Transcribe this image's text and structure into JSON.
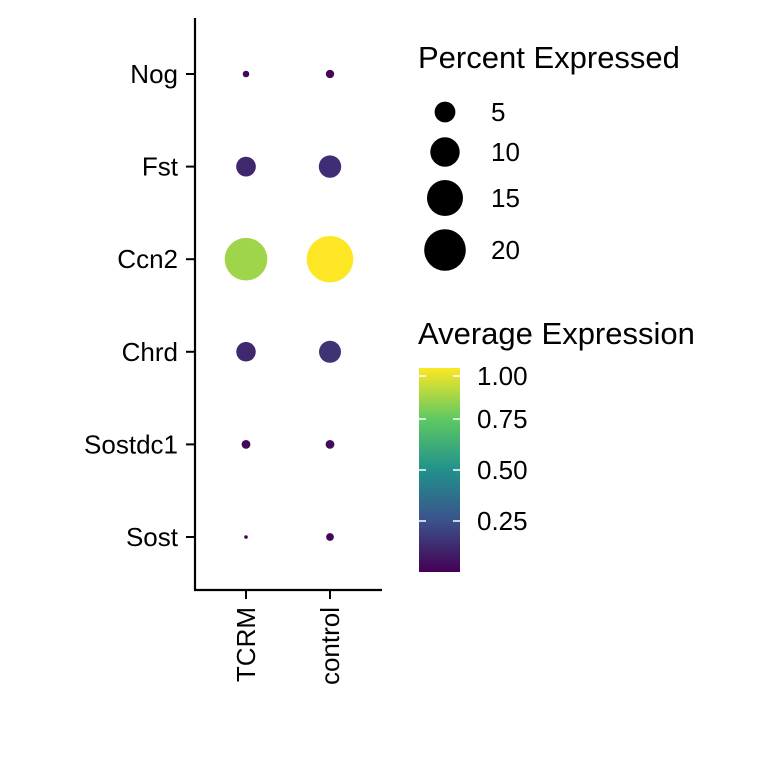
{
  "chart_data": {
    "type": "scatter",
    "subtype": "dot-plot",
    "x_categories": [
      "TCRM",
      "control"
    ],
    "y_categories": [
      "Nog",
      "Fst",
      "Ccn2",
      "Chrd",
      "Sostdc1",
      "Sost"
    ],
    "points": [
      {
        "x": "TCRM",
        "y": "Nog",
        "percent_expressed": 0.5,
        "average_expression": 0.02
      },
      {
        "x": "control",
        "y": "Nog",
        "percent_expressed": 0.8,
        "average_expression": 0.02
      },
      {
        "x": "TCRM",
        "y": "Fst",
        "percent_expressed": 4.5,
        "average_expression": 0.12
      },
      {
        "x": "control",
        "y": "Fst",
        "percent_expressed": 5.8,
        "average_expression": 0.14
      },
      {
        "x": "TCRM",
        "y": "Ccn2",
        "percent_expressed": 21.0,
        "average_expression": 0.85
      },
      {
        "x": "control",
        "y": "Ccn2",
        "percent_expressed": 25.0,
        "average_expression": 1.0
      },
      {
        "x": "TCRM",
        "y": "Chrd",
        "percent_expressed": 4.4,
        "average_expression": 0.12
      },
      {
        "x": "control",
        "y": "Chrd",
        "percent_expressed": 5.6,
        "average_expression": 0.15
      },
      {
        "x": "TCRM",
        "y": "Sostdc1",
        "percent_expressed": 0.9,
        "average_expression": 0.02
      },
      {
        "x": "control",
        "y": "Sostdc1",
        "percent_expressed": 0.9,
        "average_expression": 0.03
      },
      {
        "x": "TCRM",
        "y": "Sost",
        "percent_expressed": 0.15,
        "average_expression": 0.0
      },
      {
        "x": "control",
        "y": "Sost",
        "percent_expressed": 0.7,
        "average_expression": 0.02
      }
    ],
    "size_legend": {
      "title": "Percent Expressed",
      "breaks": [
        5,
        10,
        15,
        20
      ],
      "labels": [
        "5",
        "10",
        "15",
        "20"
      ]
    },
    "color_legend": {
      "title": "Average Expression",
      "palette": "viridis",
      "range": [
        0,
        1.0
      ],
      "breaks": [
        1.0,
        0.75,
        0.5,
        0.25
      ],
      "labels": [
        "1.00",
        "0.75",
        "0.50",
        "0.25"
      ]
    },
    "grid": false,
    "legend_position": "right"
  },
  "colors": {
    "viridis_stops": [
      "#440154",
      "#3b528b",
      "#21918c",
      "#5ec962",
      "#fde725"
    ]
  }
}
